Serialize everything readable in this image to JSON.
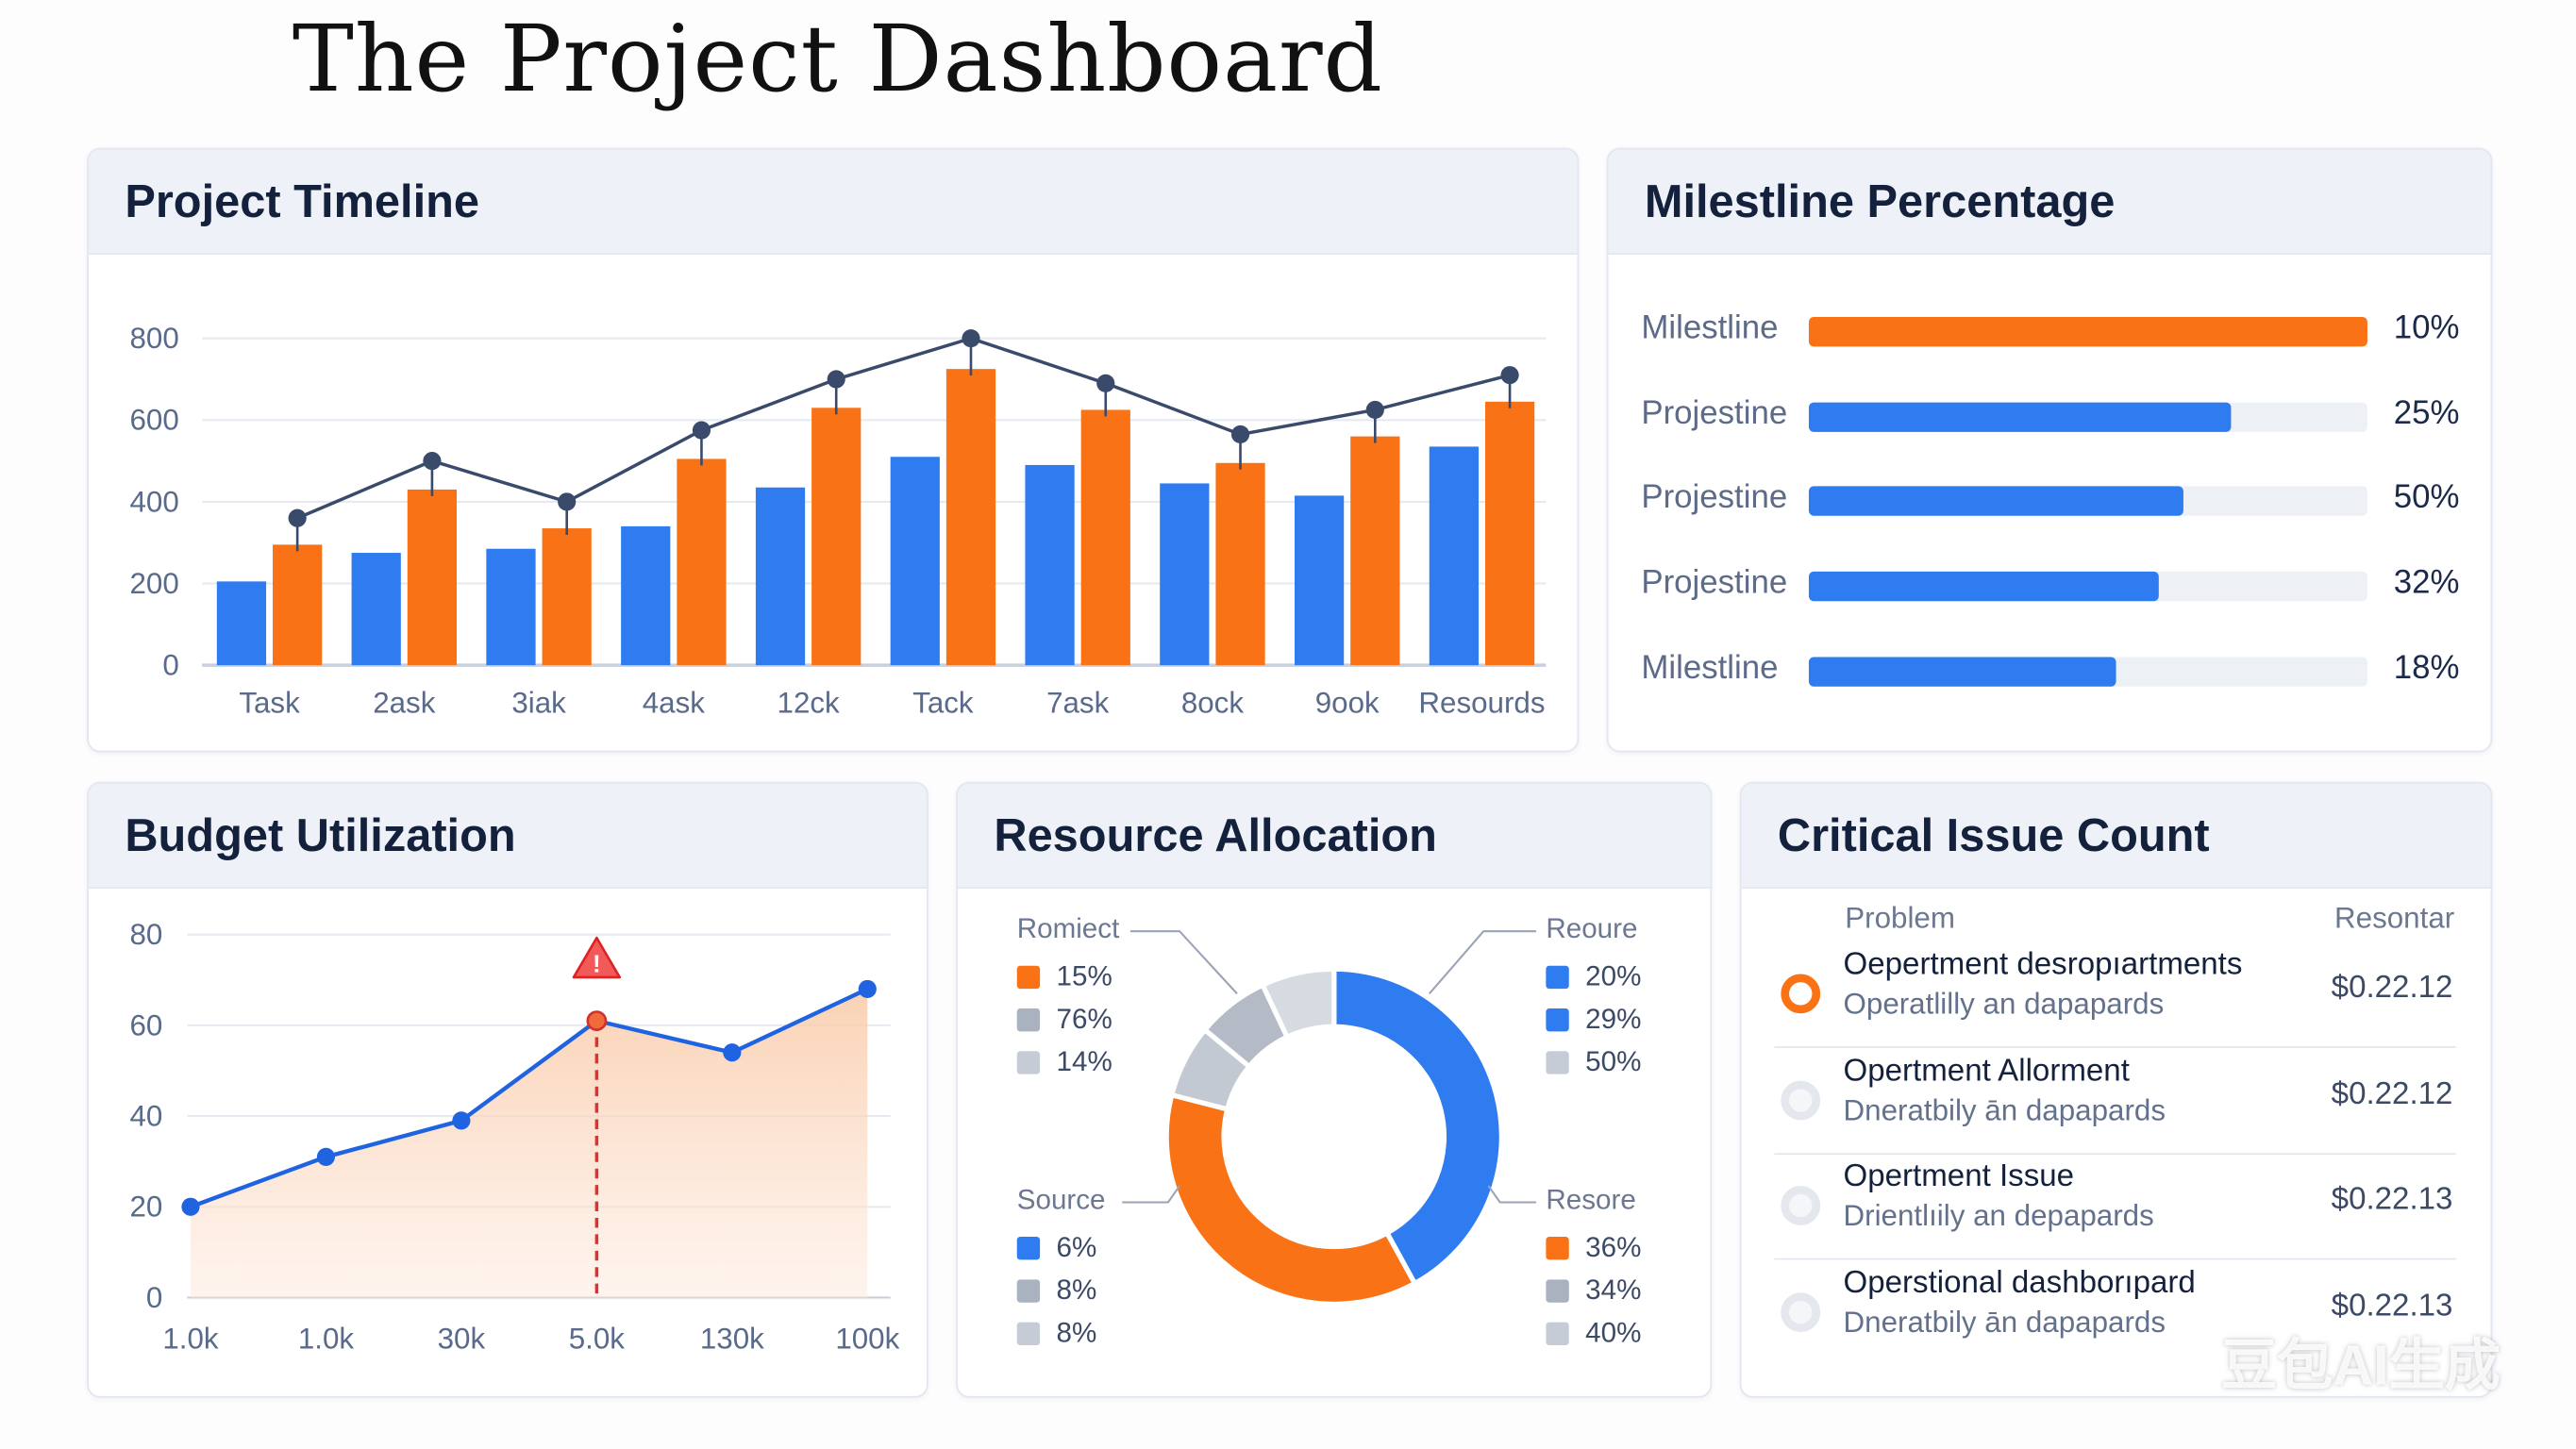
{
  "page_title": "The Project Dashboard",
  "colors": {
    "blue": "#2f7bf0",
    "orange": "#f97316",
    "gray": "#b9c0cc",
    "gray_light": "#d3d8e0",
    "navy": "#3a4a6b",
    "red": "#e03131"
  },
  "timeline": {
    "title": "Project Timeline",
    "chart_data": {
      "type": "bar",
      "categories": [
        "Task",
        "2ask",
        "3iak",
        "4ask",
        "12ck",
        "Tack",
        "7ask",
        "8ock",
        "9ook",
        "Resourds"
      ],
      "series": [
        {
          "color": "#2f7bf0",
          "values": [
            205,
            275,
            285,
            340,
            435,
            510,
            490,
            445,
            415,
            535
          ]
        },
        {
          "color": "#f97316",
          "values": [
            295,
            430,
            335,
            505,
            630,
            725,
            625,
            495,
            560,
            645
          ]
        },
        {
          "type": "line",
          "color": "#3a4a6b",
          "values": [
            360,
            500,
            400,
            575,
            700,
            800,
            690,
            565,
            625,
            710
          ]
        }
      ],
      "yticks": [
        "0",
        "200",
        "400",
        "600",
        "800"
      ],
      "ylim": [
        0,
        800
      ],
      "grid": true
    }
  },
  "milestones": {
    "title": "Milestline Percentage",
    "items": [
      {
        "label": "Milestline",
        "pct_label": "10%",
        "fill": 1.0,
        "color": "#f97316"
      },
      {
        "label": "Projestine",
        "pct_label": "25%",
        "fill": 0.755,
        "color": "#2f7bf0"
      },
      {
        "label": "Projestine",
        "pct_label": "50%",
        "fill": 0.67,
        "color": "#2f7bf0"
      },
      {
        "label": "Projestine",
        "pct_label": "32%",
        "fill": 0.627,
        "color": "#2f7bf0"
      },
      {
        "label": "Milestline",
        "pct_label": "18%",
        "fill": 0.55,
        "color": "#2f7bf0"
      }
    ]
  },
  "budget": {
    "title": "Budget Utilization",
    "chart_data": {
      "type": "area",
      "categories": [
        "1.0k",
        "1.0k",
        "30k",
        "5.0k",
        "130k",
        "100k"
      ],
      "values": [
        20,
        31,
        39,
        61,
        54,
        68
      ],
      "yticks": [
        "0",
        "20",
        "40",
        "60",
        "80"
      ],
      "ylim": [
        0,
        80
      ],
      "grid": true,
      "alert_index": 3,
      "alert_icon": "warning-triangle-icon"
    }
  },
  "resources": {
    "title": "Resource Allocation",
    "chart_data": {
      "type": "pie",
      "donut": true,
      "slices": [
        {
          "value": 42,
          "color": "#2f7bf0"
        },
        {
          "value": 37,
          "color": "#f97316"
        },
        {
          "value": 7,
          "color": "#c3c9d3"
        },
        {
          "value": 7,
          "color": "#b4bbc7"
        },
        {
          "value": 7,
          "color": "#d6dbe2"
        }
      ],
      "legends": [
        {
          "title": "Romiect",
          "items": [
            {
              "label": "15%",
              "color": "#f97316"
            },
            {
              "label": "76%",
              "color": "#aab2c0"
            },
            {
              "label": "14%",
              "color": "#c6ccd6"
            }
          ]
        },
        {
          "title": "Reoure",
          "items": [
            {
              "label": "20%",
              "color": "#2f7bf0"
            },
            {
              "label": "29%",
              "color": "#2f7bf0"
            },
            {
              "label": "50%",
              "color": "#c6ccd6"
            }
          ]
        },
        {
          "title": "Source",
          "items": [
            {
              "label": "6%",
              "color": "#2f7bf0"
            },
            {
              "label": "8%",
              "color": "#aab2c0"
            },
            {
              "label": "8%",
              "color": "#c6ccd6"
            }
          ]
        },
        {
          "title": "Resore",
          "items": [
            {
              "label": "36%",
              "color": "#f97316"
            },
            {
              "label": "34%",
              "color": "#aab2c0"
            },
            {
              "label": "40%",
              "color": "#c6ccd6"
            }
          ]
        }
      ]
    }
  },
  "issues": {
    "title": "Critical Issue Count",
    "col_problem": "Problem",
    "col_value": "Resontar",
    "rows": [
      {
        "title": "Oepertment desropıartments",
        "sub": "Operatlilly an dapapards",
        "value": "$0.22.12",
        "active": true
      },
      {
        "title": "Opertment Allorment",
        "sub": "Dneratbily ān dapapards",
        "value": "$0.22.12",
        "active": false
      },
      {
        "title": "Opertment Issue",
        "sub": "Drientlıily an depapards",
        "value": "$0.22.13",
        "active": false
      },
      {
        "title": "Operstional dashborıpard",
        "sub": "Dneratbily ān dapapards",
        "value": "$0.22.13",
        "active": false
      }
    ]
  },
  "watermark": "豆包AI生成"
}
